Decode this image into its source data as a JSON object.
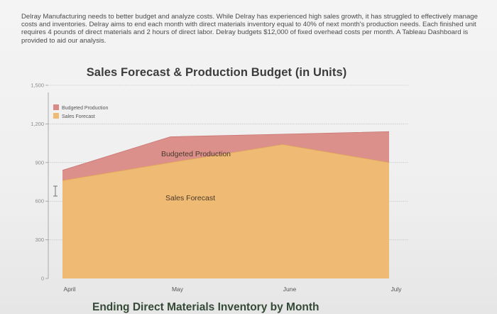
{
  "intro_text": "Delray Manufacturing needs to better budget and analyze costs. While Delray has experienced high sales growth, it has struggled to effectively manage costs and inventories. Delray aims to end each month with direct materials inventory equal to 40% of next month's production needs. Each finished unit requires 4 pounds of direct materials and 2 hours of direct labor. Delray budgets $12,000 of fixed overhead costs per month. A Tableau Dashboard is provided to aid our analysis.",
  "next_chart_title": "Ending Direct Materials Inventory by Month",
  "colors": {
    "budgeted_production": "#d98a86",
    "sales_forecast": "#efba73"
  },
  "chart_data": {
    "type": "area",
    "title": "Sales Forecast & Production Budget (in Units)",
    "xlabel": "",
    "ylabel": "",
    "categories": [
      "April",
      "May",
      "June",
      "July"
    ],
    "yticks": [
      "0",
      "300",
      "600",
      "900",
      "1,200",
      "1,500"
    ],
    "ylim": [
      0,
      1500
    ],
    "grid": true,
    "legend": "top-left",
    "series": [
      {
        "name": "Budgeted Production",
        "label": "Budgeted Production",
        "values": [
          840,
          1100,
          1120,
          1140
        ]
      },
      {
        "name": "Sales Forecast",
        "label": "Sales Forecast",
        "values": [
          760,
          900,
          1040,
          900
        ]
      }
    ]
  }
}
